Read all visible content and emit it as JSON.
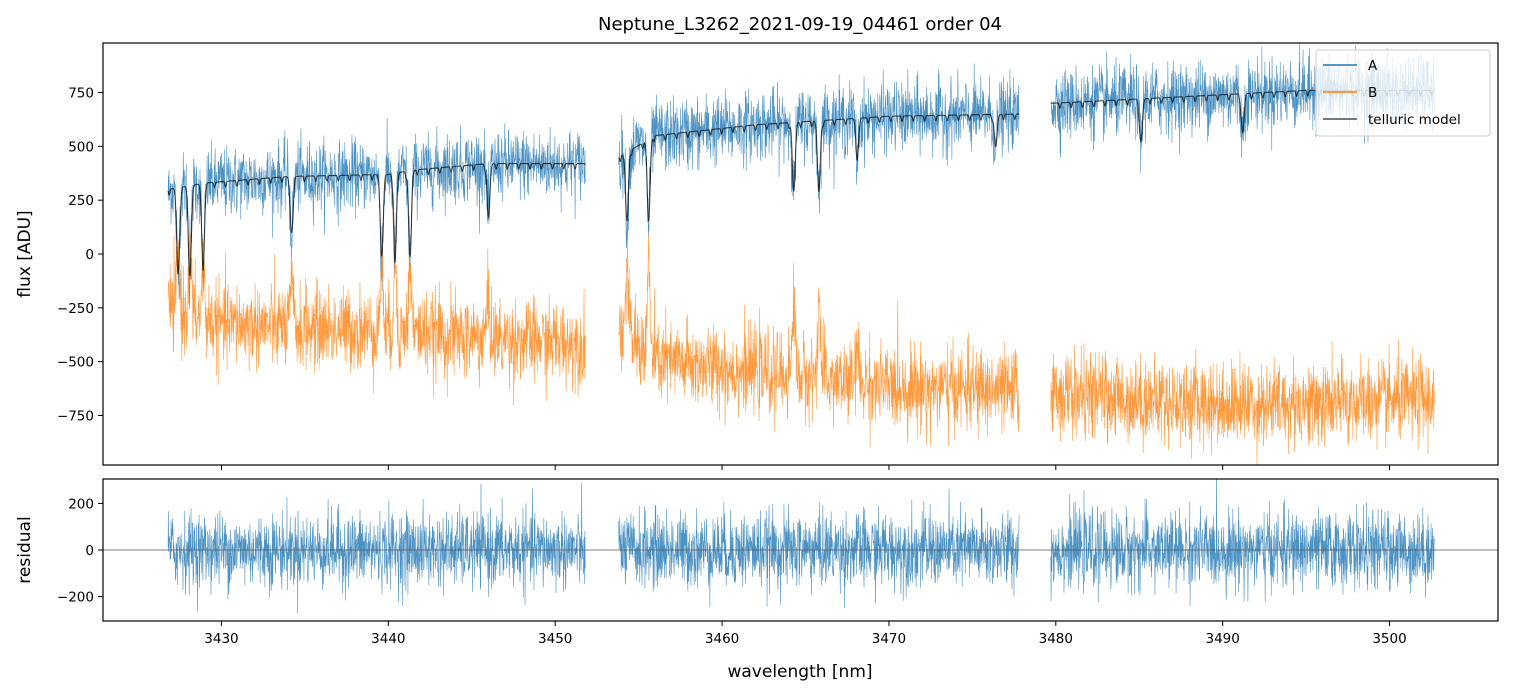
{
  "figure": {
    "title": "Neptune_L3262_2021-09-19_04461  order 04"
  },
  "colors": {
    "A": "#1f77b4",
    "B": "#ff7f0e",
    "model": "#000000",
    "axes": "#000000"
  },
  "chart_data": [
    {
      "type": "line",
      "panel": "top",
      "title": "Neptune_L3262_2021-09-19_04461  order 04",
      "xlabel": "",
      "ylabel": "flux [ADU]",
      "xlim": [
        3422.9,
        3506.5
      ],
      "ylim": [
        -980,
        980
      ],
      "xticks": [
        3430,
        3440,
        3450,
        3460,
        3470,
        3480,
        3490,
        3500
      ],
      "yticks": [
        -750,
        -500,
        -250,
        0,
        250,
        500,
        750
      ],
      "ytick_labels": [
        "−750",
        "−500",
        "−250",
        "0",
        "250",
        "500",
        "750"
      ],
      "legend": {
        "location": "top-right",
        "entries": [
          "A",
          "B",
          "telluric model"
        ]
      },
      "segments": [
        {
          "x_start": 3426.8,
          "x_end": 3451.8
        },
        {
          "x_start": 3453.8,
          "x_end": 3477.8
        },
        {
          "x_start": 3479.7,
          "x_end": 3502.7
        }
      ],
      "series": [
        {
          "name": "A",
          "noise": 80,
          "continuum": [
            [
              3426.8,
              300
            ],
            [
              3429,
              330
            ],
            [
              3434,
              360
            ],
            [
              3440,
              370
            ],
            [
              3441.5,
              390
            ],
            [
              3446,
              420
            ],
            [
              3451.8,
              420
            ],
            [
              3453.8,
              450
            ],
            [
              3456,
              550
            ],
            [
              3462,
              600
            ],
            [
              3470,
              640
            ],
            [
              3477.8,
              650
            ],
            [
              3479.7,
              700
            ],
            [
              3485,
              720
            ],
            [
              3490,
              740
            ],
            [
              3495,
              760
            ],
            [
              3502.7,
              760
            ]
          ],
          "absorption": [
            {
              "x": 3427.4,
              "depth": 400
            },
            {
              "x": 3428.1,
              "depth": 420
            },
            {
              "x": 3428.9,
              "depth": 380
            },
            {
              "x": 3434.2,
              "depth": 260
            },
            {
              "x": 3439.6,
              "depth": 380
            },
            {
              "x": 3440.4,
              "depth": 390
            },
            {
              "x": 3441.3,
              "depth": 400
            },
            {
              "x": 3446.0,
              "depth": 250
            },
            {
              "x": 3454.3,
              "depth": 320
            },
            {
              "x": 3455.6,
              "depth": 380
            },
            {
              "x": 3464.3,
              "depth": 320
            },
            {
              "x": 3465.8,
              "depth": 330
            },
            {
              "x": 3468.1,
              "depth": 170
            },
            {
              "x": 3476.4,
              "depth": 150
            },
            {
              "x": 3485.1,
              "depth": 200
            },
            {
              "x": 3491.2,
              "depth": 180
            }
          ]
        },
        {
          "name": "B",
          "noise": 95,
          "continuum": [
            [
              3426.8,
              -250
            ],
            [
              3430,
              -330
            ],
            [
              3440,
              -360
            ],
            [
              3446,
              -400
            ],
            [
              3451.8,
              -420
            ],
            [
              3453.8,
              -350
            ],
            [
              3456,
              -500
            ],
            [
              3462,
              -550
            ],
            [
              3470,
              -620
            ],
            [
              3477.8,
              -640
            ],
            [
              3479.7,
              -650
            ],
            [
              3485,
              -680
            ],
            [
              3490,
              -700
            ],
            [
              3495,
              -700
            ],
            [
              3502.7,
              -680
            ]
          ],
          "absorption": [
            {
              "x": 3427.4,
              "depth": -260
            },
            {
              "x": 3428.1,
              "depth": -280
            },
            {
              "x": 3428.9,
              "depth": -240
            },
            {
              "x": 3434.2,
              "depth": -200
            },
            {
              "x": 3439.6,
              "depth": -320
            },
            {
              "x": 3440.4,
              "depth": -330
            },
            {
              "x": 3441.3,
              "depth": -340
            },
            {
              "x": 3446.0,
              "depth": -200
            },
            {
              "x": 3454.3,
              "depth": -300
            },
            {
              "x": 3455.6,
              "depth": -420
            },
            {
              "x": 3464.3,
              "depth": -360
            },
            {
              "x": 3465.8,
              "depth": -380
            },
            {
              "x": 3468.1,
              "depth": -150
            }
          ]
        },
        {
          "name": "telluric model",
          "noise": 0,
          "continuum": [
            [
              3426.8,
              300
            ],
            [
              3429,
              330
            ],
            [
              3434,
              360
            ],
            [
              3440,
              370
            ],
            [
              3441.5,
              390
            ],
            [
              3446,
              420
            ],
            [
              3451.8,
              420
            ],
            [
              3453.8,
              450
            ],
            [
              3456,
              550
            ],
            [
              3462,
              600
            ],
            [
              3470,
              640
            ],
            [
              3477.8,
              650
            ],
            [
              3479.7,
              700
            ],
            [
              3485,
              720
            ],
            [
              3490,
              740
            ],
            [
              3495,
              760
            ],
            [
              3502.7,
              760
            ]
          ],
          "absorption": [
            {
              "x": 3427.4,
              "depth": 400
            },
            {
              "x": 3428.1,
              "depth": 420
            },
            {
              "x": 3428.9,
              "depth": 380
            },
            {
              "x": 3434.2,
              "depth": 260
            },
            {
              "x": 3439.6,
              "depth": 380
            },
            {
              "x": 3440.4,
              "depth": 390
            },
            {
              "x": 3441.3,
              "depth": 400
            },
            {
              "x": 3446.0,
              "depth": 250
            },
            {
              "x": 3454.3,
              "depth": 320
            },
            {
              "x": 3455.6,
              "depth": 380
            },
            {
              "x": 3464.3,
              "depth": 320
            },
            {
              "x": 3465.8,
              "depth": 330
            },
            {
              "x": 3468.1,
              "depth": 170
            },
            {
              "x": 3476.4,
              "depth": 150
            },
            {
              "x": 3485.1,
              "depth": 200
            },
            {
              "x": 3491.2,
              "depth": 180
            }
          ]
        }
      ]
    },
    {
      "type": "line",
      "panel": "bottom",
      "title": "",
      "xlabel": "wavelength [nm]",
      "ylabel": "residual",
      "xlim": [
        3422.9,
        3506.5
      ],
      "ylim": [
        -305,
        305
      ],
      "xticks": [
        3430,
        3440,
        3450,
        3460,
        3470,
        3480,
        3490,
        3500
      ],
      "xtick_labels": [
        "3430",
        "3440",
        "3450",
        "3460",
        "3470",
        "3480",
        "3490",
        "3500"
      ],
      "yticks": [
        -200,
        0,
        200
      ],
      "ytick_labels": [
        "−200",
        "0",
        "200"
      ],
      "zero_line": true,
      "series": [
        {
          "name": "residual",
          "noise": 80,
          "mean": 0
        }
      ]
    }
  ]
}
